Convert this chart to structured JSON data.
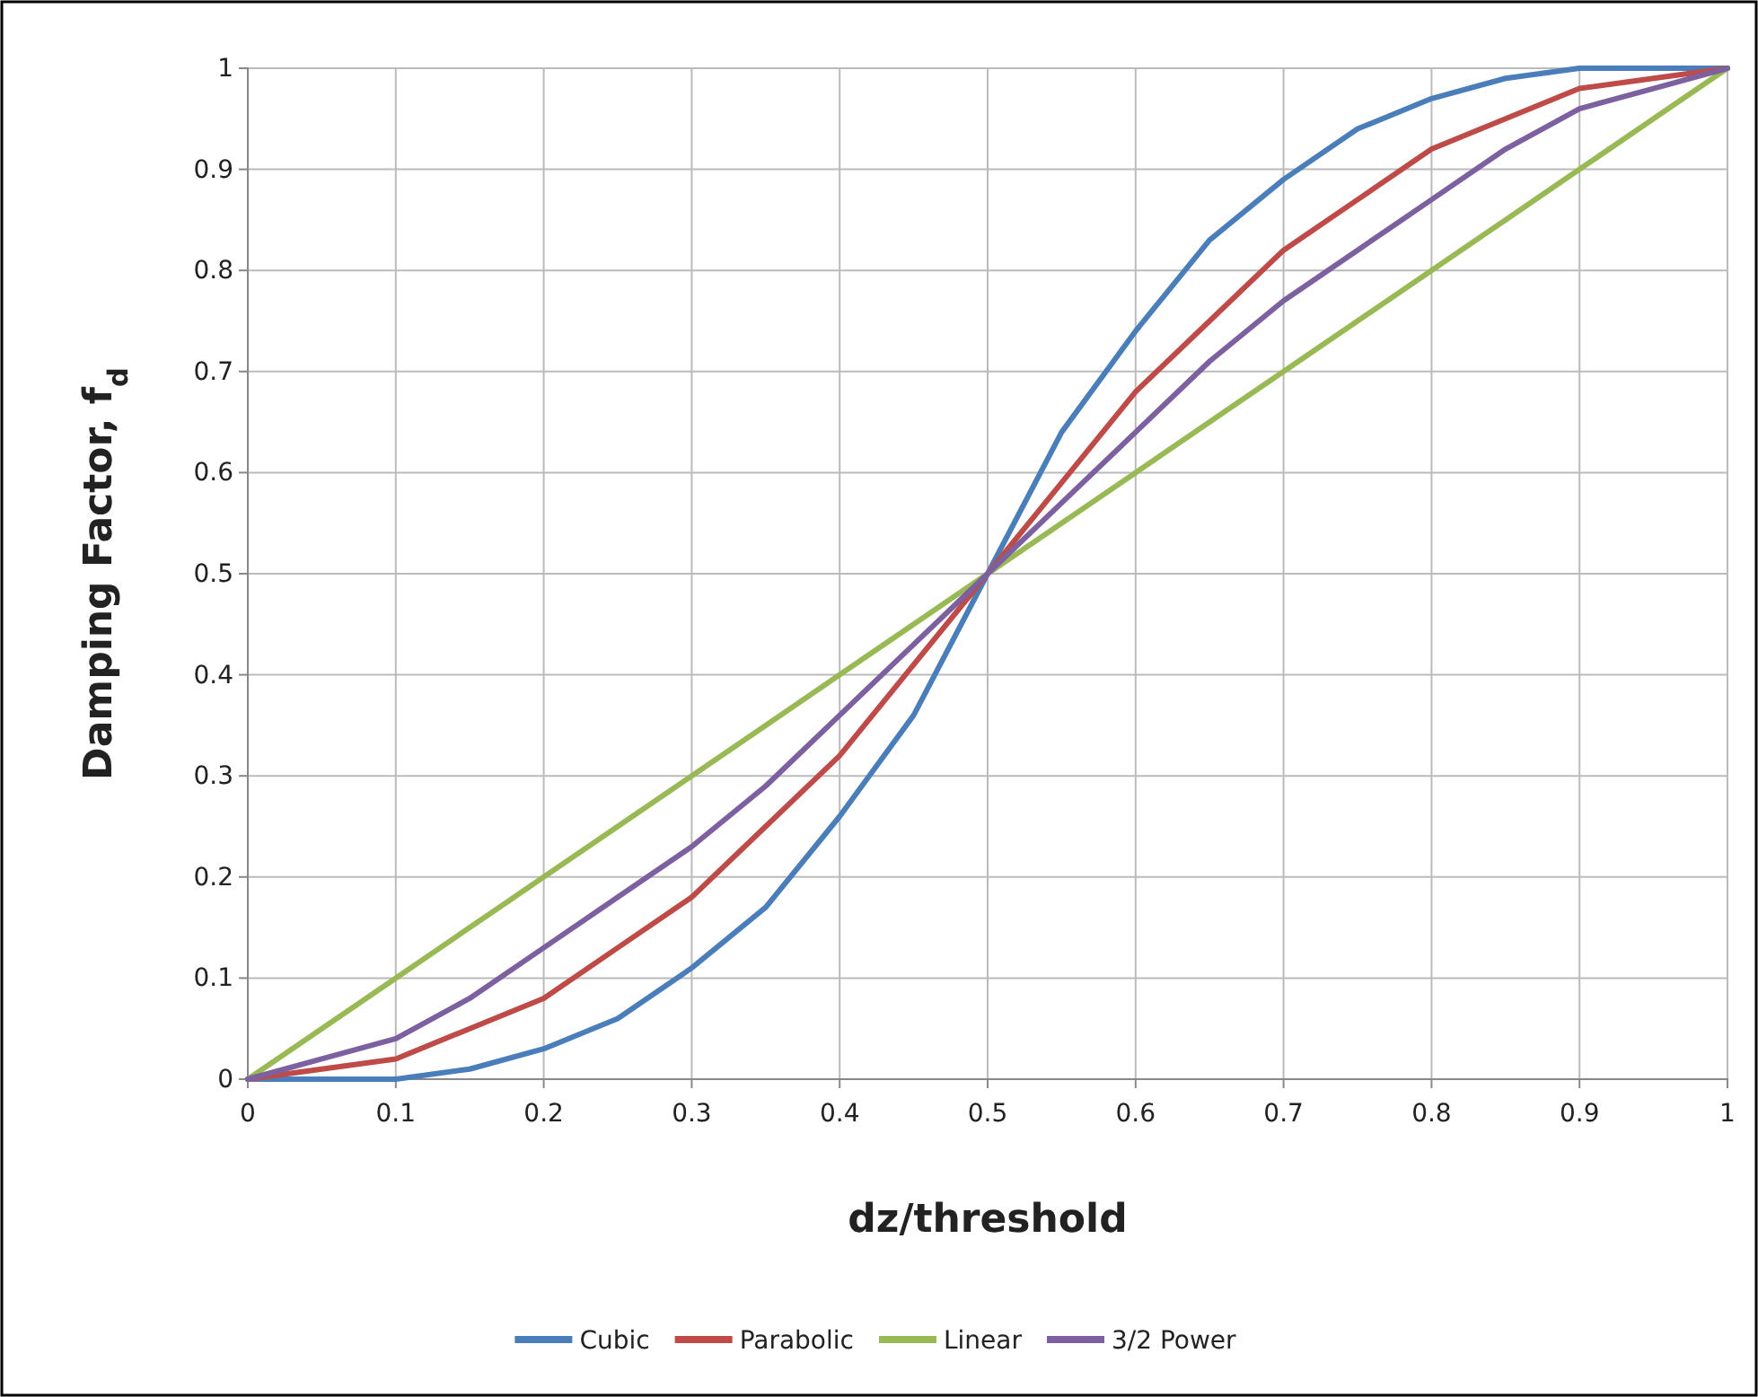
{
  "chart_data": {
    "type": "line",
    "xlabel": "dz/threshold",
    "ylabel": "Damping Factor, f$_{d}$",
    "x": [
      0,
      0.05,
      0.1,
      0.15,
      0.2,
      0.25,
      0.3,
      0.35,
      0.4,
      0.45,
      0.5,
      0.55,
      0.6,
      0.65,
      0.7,
      0.75,
      0.8,
      0.85,
      0.9,
      0.95,
      1
    ],
    "series": [
      {
        "name": "Cubic",
        "color": "#4a7ebb",
        "values": [
          0,
          0,
          0,
          0.01,
          0.03,
          0.06,
          0.11,
          0.17,
          0.26,
          0.36,
          0.5,
          0.64,
          0.74,
          0.83,
          0.89,
          0.94,
          0.97,
          0.99,
          1,
          1,
          1
        ]
      },
      {
        "name": "Parabolic",
        "color": "#be4b48",
        "values": [
          0,
          0.01,
          0.02,
          0.05,
          0.08,
          0.13,
          0.18,
          0.25,
          0.32,
          0.41,
          0.5,
          0.59,
          0.68,
          0.75,
          0.82,
          0.87,
          0.92,
          0.95,
          0.98,
          0.99,
          1
        ]
      },
      {
        "name": "Linear",
        "color": "#98b954",
        "values": [
          0,
          0.05,
          0.1,
          0.15,
          0.2,
          0.25,
          0.3,
          0.35,
          0.4,
          0.45,
          0.5,
          0.55,
          0.6,
          0.65,
          0.7,
          0.75,
          0.8,
          0.85,
          0.9,
          0.95,
          1
        ]
      },
      {
        "name": "3/2 Power",
        "color": "#7d60a0",
        "values": [
          0,
          0.02,
          0.04,
          0.08,
          0.13,
          0.18,
          0.23,
          0.29,
          0.36,
          0.43,
          0.5,
          0.57,
          0.64,
          0.71,
          0.77,
          0.82,
          0.87,
          0.92,
          0.96,
          0.98,
          1
        ]
      }
    ],
    "xlim": [
      0,
      1
    ],
    "xticks": [
      0,
      0.1,
      0.2,
      0.3,
      0.4,
      0.5,
      0.6,
      0.7,
      0.8,
      0.9,
      1
    ],
    "ylim": [
      0,
      1
    ],
    "yticks": [
      0,
      0.1,
      0.2,
      0.3,
      0.4,
      0.5,
      0.6,
      0.7,
      0.8,
      0.9,
      1
    ],
    "grid": true,
    "legend": "bottom",
    "marker": "none",
    "line_style": "solid"
  }
}
